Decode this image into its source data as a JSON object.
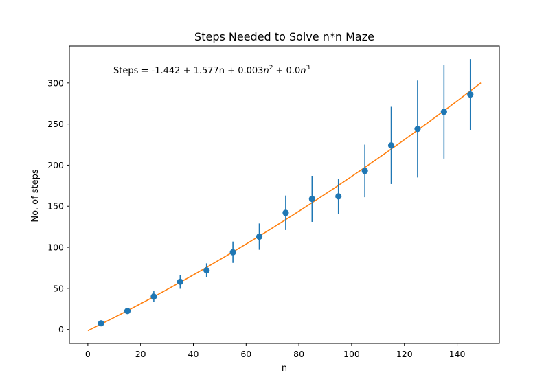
{
  "chart_data": {
    "type": "scatter",
    "title": "Steps Needed to Solve n*n Maze",
    "xlabel": "n",
    "ylabel": "No. of steps",
    "xlim": [
      -7,
      156
    ],
    "ylim": [
      -17,
      345
    ],
    "x_ticks": [
      0,
      20,
      40,
      60,
      80,
      100,
      120,
      140
    ],
    "y_ticks": [
      0,
      50,
      100,
      150,
      200,
      250,
      300
    ],
    "grid": false,
    "annotation": {
      "prefix": "Steps = -1.442 + 1.577n + 0.003",
      "n1": "n",
      "sup1": "2",
      "mid": " + 0.0",
      "n2": "n",
      "sup2": "3"
    },
    "series": [
      {
        "kind": "errorbar",
        "color": "#1f77b4",
        "x": [
          5,
          15,
          25,
          35,
          45,
          55,
          65,
          75,
          85,
          95,
          105,
          115,
          125,
          135,
          145
        ],
        "y": [
          7.5,
          22.5,
          40,
          58,
          72,
          94,
          113,
          142,
          159,
          162,
          193,
          224,
          244,
          265,
          286
        ],
        "yerr": [
          1.5,
          2.5,
          6.5,
          8.5,
          8.5,
          13,
          16,
          21,
          28,
          21,
          32,
          47,
          59,
          57,
          43
        ]
      },
      {
        "kind": "fit-line",
        "color": "#ff7f0e",
        "coefficients": [
          -1.442,
          1.577,
          0.003,
          0.0
        ],
        "x_range": [
          0,
          149
        ]
      }
    ]
  }
}
